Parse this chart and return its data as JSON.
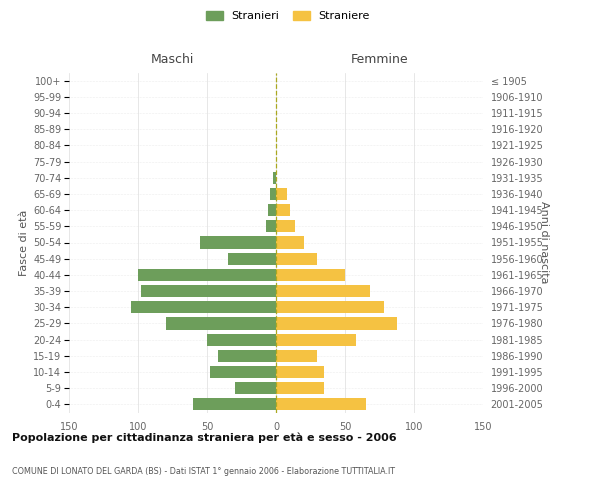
{
  "age_groups": [
    "0-4",
    "5-9",
    "10-14",
    "15-19",
    "20-24",
    "25-29",
    "30-34",
    "35-39",
    "40-44",
    "45-49",
    "50-54",
    "55-59",
    "60-64",
    "65-69",
    "70-74",
    "75-79",
    "80-84",
    "85-89",
    "90-94",
    "95-99",
    "100+"
  ],
  "birth_years": [
    "2001-2005",
    "1996-2000",
    "1991-1995",
    "1986-1990",
    "1981-1985",
    "1976-1980",
    "1971-1975",
    "1966-1970",
    "1961-1965",
    "1956-1960",
    "1951-1955",
    "1946-1950",
    "1941-1945",
    "1936-1940",
    "1931-1935",
    "1926-1930",
    "1921-1925",
    "1916-1920",
    "1911-1915",
    "1906-1910",
    "≤ 1905"
  ],
  "males": [
    60,
    30,
    48,
    42,
    50,
    80,
    105,
    98,
    100,
    35,
    55,
    7,
    6,
    4,
    2,
    0,
    0,
    0,
    0,
    0,
    0
  ],
  "females": [
    65,
    35,
    35,
    30,
    58,
    88,
    78,
    68,
    50,
    30,
    20,
    14,
    10,
    8,
    0,
    0,
    0,
    0,
    0,
    0,
    0
  ],
  "male_color": "#6d9e5b",
  "female_color": "#f5c242",
  "title": "Popolazione per cittadinanza straniera per età e sesso - 2006",
  "subtitle": "COMUNE DI LONATO DEL GARDA (BS) - Dati ISTAT 1° gennaio 2006 - Elaborazione TUTTITALIA.IT",
  "ylabel_left": "Fasce di età",
  "ylabel_right": "Anni di nascita",
  "header_left": "Maschi",
  "header_right": "Femmine",
  "legend_male": "Stranieri",
  "legend_female": "Straniere",
  "xlim": 150,
  "xtick_vals": [
    -150,
    -100,
    -50,
    0,
    50,
    100,
    150
  ]
}
